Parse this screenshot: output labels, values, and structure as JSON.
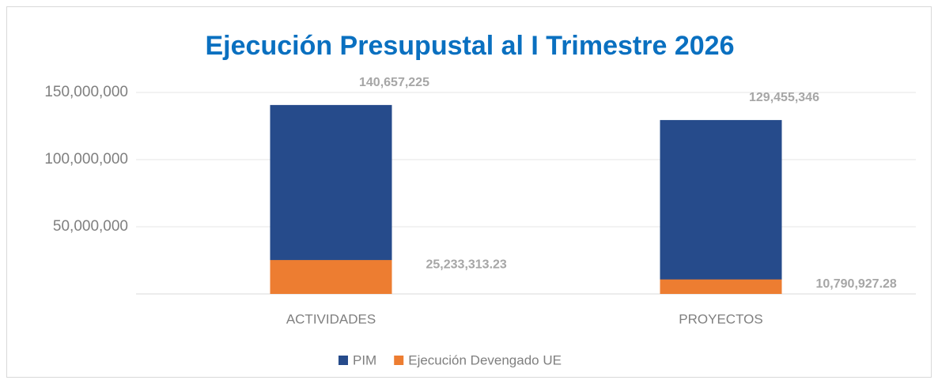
{
  "chart_data": {
    "type": "bar",
    "title": "Ejecución Presupustal al I Trimestre 2026",
    "categories": [
      "ACTIVIDADES",
      "PROYECTOS"
    ],
    "series": [
      {
        "name": "PIM",
        "color": "#264b8b",
        "values": [
          140657225,
          129455346
        ],
        "value_labels": [
          "140,657,225",
          "129,455,346"
        ]
      },
      {
        "name": "Ejecución Devengado UE",
        "color": "#ed7d31",
        "values": [
          25233313.23,
          10790927.28
        ],
        "value_labels": [
          "25,233,313.23",
          "10,790,927.28"
        ]
      }
    ],
    "ylim": [
      0,
      150000000
    ],
    "yticks": [
      {
        "value": 50000000,
        "label": "50,000,000"
      },
      {
        "value": 100000000,
        "label": "100,000,000"
      },
      {
        "value": 150000000,
        "label": "150,000,000"
      }
    ],
    "grid": true
  }
}
